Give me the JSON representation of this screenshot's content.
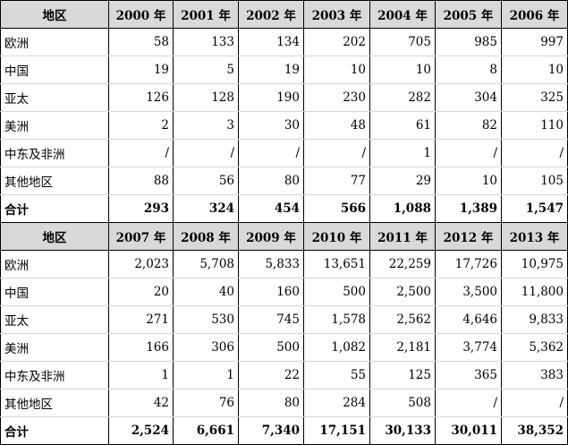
{
  "table1": {
    "header": [
      "地区",
      "2000 年",
      "2001 年",
      "2002 年",
      "2003 年",
      "2004 年",
      "2005 年",
      "2006 年"
    ],
    "rows": [
      [
        "欧洲",
        "58",
        "133",
        "134",
        "202",
        "705",
        "985",
        "997"
      ],
      [
        "中国",
        "19",
        "5",
        "19",
        "10",
        "10",
        "8",
        "10"
      ],
      [
        "亚太",
        "126",
        "128",
        "190",
        "230",
        "282",
        "304",
        "325"
      ],
      [
        "美洲",
        "2",
        "3",
        "30",
        "48",
        "61",
        "82",
        "110"
      ],
      [
        "中东及非洲",
        "/",
        "/",
        "/",
        "/",
        "1",
        "/",
        "/"
      ],
      [
        "其他地区",
        "88",
        "56",
        "80",
        "77",
        "29",
        "10",
        "105"
      ]
    ],
    "total": [
      "合计",
      "293",
      "324",
      "454",
      "566",
      "1,088",
      "1,389",
      "1,547"
    ]
  },
  "table2": {
    "header": [
      "地区",
      "2007 年",
      "2008 年",
      "2009 年",
      "2010 年",
      "2011 年",
      "2012 年",
      "2013 年"
    ],
    "rows": [
      [
        "欧洲",
        "2,023",
        "5,708",
        "5,833",
        "13,651",
        "22,259",
        "17,726",
        "10,975"
      ],
      [
        "中国",
        "20",
        "40",
        "160",
        "500",
        "2,500",
        "3,500",
        "11,800"
      ],
      [
        "亚太",
        "271",
        "530",
        "745",
        "1,578",
        "2,562",
        "4,646",
        "9,833"
      ],
      [
        "美洲",
        "166",
        "306",
        "500",
        "1,082",
        "2,181",
        "3,774",
        "5,362"
      ],
      [
        "中东及非洲",
        "1",
        "1",
        "22",
        "55",
        "125",
        "365",
        "383"
      ],
      [
        "其他地区",
        "42",
        "76",
        "80",
        "284",
        "508",
        "/",
        "/"
      ]
    ],
    "total": [
      "合计",
      "2,524",
      "6,661",
      "7,340",
      "17,151",
      "30,133",
      "30,011",
      "38,352"
    ]
  }
}
